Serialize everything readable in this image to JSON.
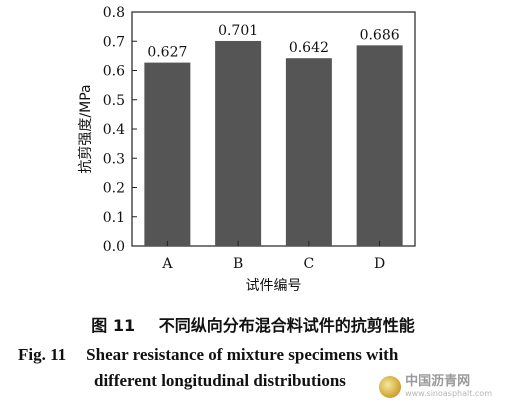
{
  "chart_data": {
    "type": "bar",
    "categories": [
      "A",
      "B",
      "C",
      "D"
    ],
    "values": [
      0.627,
      0.701,
      0.642,
      0.686
    ],
    "value_labels": [
      "0.627",
      "0.701",
      "0.642",
      "0.686"
    ],
    "title": "",
    "xlabel": "试件编号",
    "ylabel": "抗剪强度/MPa",
    "ylim": [
      0.0,
      0.8
    ],
    "yticks": [
      "0.0",
      "0.1",
      "0.2",
      "0.3",
      "0.4",
      "0.5",
      "0.6",
      "0.7",
      "0.8"
    ],
    "grid": false,
    "bar_color": "#555555"
  },
  "caption": {
    "cn_number": "图 11",
    "cn_text": "不同纵向分布混合料试件的抗剪性能",
    "en_number": "Fig. 11",
    "en_line1": "Shear resistance of mixture specimens with",
    "en_line2": "different longitudinal distributions"
  },
  "watermark": {
    "name": "中国沥青网",
    "url": "www.sinoasphalt.com"
  }
}
